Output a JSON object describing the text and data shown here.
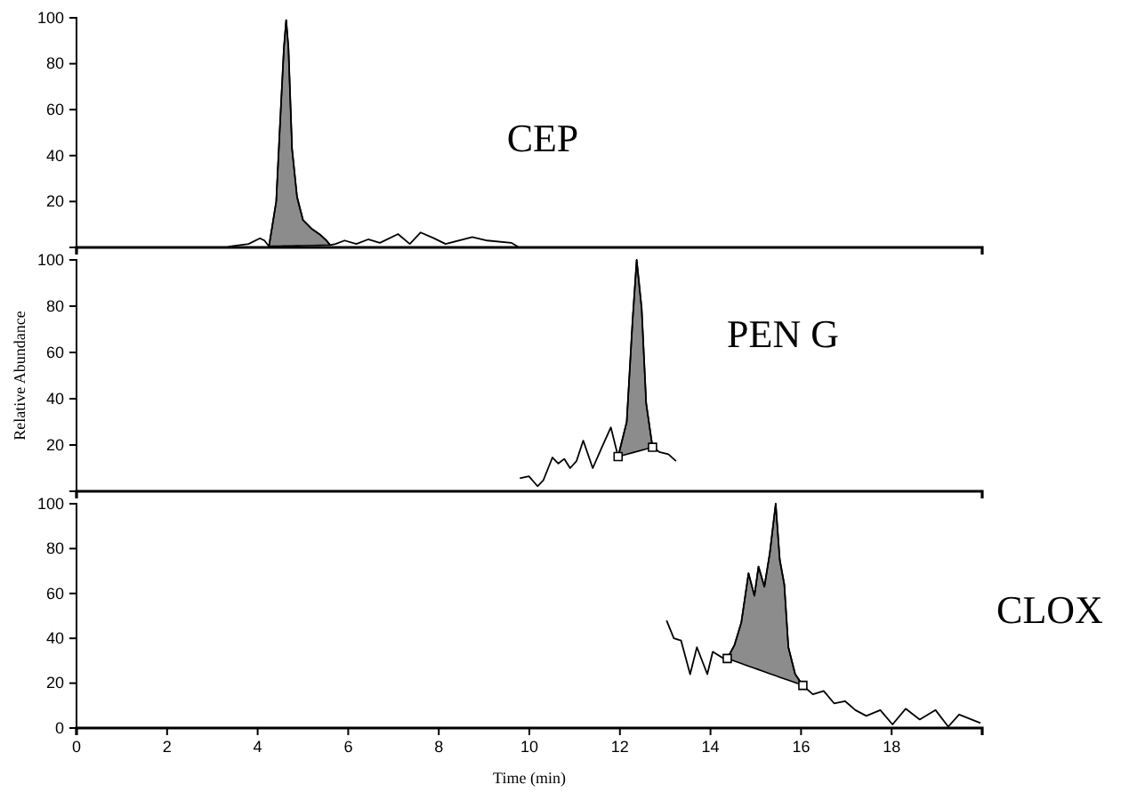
{
  "chart_data": [
    {
      "type": "line",
      "title": "CEP",
      "xlim": [
        0,
        20
      ],
      "ylim": [
        0,
        100
      ],
      "yticks": [
        20,
        40,
        60,
        80,
        100
      ],
      "tick_labels": "y",
      "series": [
        {
          "color": "#000000",
          "x": [
            3.35,
            3.8,
            4.05,
            4.15,
            4.25,
            4.32,
            4.41,
            4.5,
            4.58,
            4.63,
            4.68,
            4.76,
            4.87,
            5.0,
            5.2,
            5.39,
            5.52,
            5.6,
            5.72,
            5.92,
            6.18,
            6.44,
            6.7,
            7.1,
            7.36,
            7.6,
            7.89,
            8.15,
            8.74,
            9.07,
            9.6,
            9.75
          ],
          "values": [
            0.3,
            1.5,
            4,
            3,
            0.5,
            9,
            20,
            56,
            87,
            99,
            87,
            43,
            22,
            12,
            8,
            5.4,
            3,
            1,
            1.5,
            3,
            1.5,
            3.5,
            2,
            5.8,
            1.5,
            6.5,
            4,
            1.5,
            4.5,
            3,
            2,
            0.3
          ]
        },
        {
          "type": "area",
          "color": "#8c8c8c",
          "x": [
            4.25,
            4.32,
            4.41,
            4.5,
            4.58,
            4.63,
            4.68,
            4.76,
            4.87,
            5.0,
            5.2,
            5.39,
            5.52,
            5.6
          ],
          "values": [
            0.5,
            9,
            20,
            56,
            87,
            99,
            87,
            43,
            22,
            12,
            8,
            5.4,
            3,
            1
          ]
        }
      ]
    },
    {
      "type": "line",
      "title": "PEN G",
      "ylabel": "Relative Abundance",
      "xlim": [
        0,
        20
      ],
      "ylim": [
        0,
        100
      ],
      "yticks": [
        20,
        40,
        60,
        80,
        100
      ],
      "tick_labels": "y",
      "series": [
        {
          "color": "#000000",
          "x": [
            9.79,
            9.99,
            10.18,
            10.31,
            10.51,
            10.64,
            10.77,
            10.9,
            11.04,
            11.19,
            11.4,
            11.59,
            11.8,
            11.96,
            12.15,
            12.28,
            12.37,
            12.48,
            12.58,
            12.72,
            12.87,
            13.07,
            13.24
          ],
          "values": [
            5.6,
            6.5,
            2.2,
            4.8,
            14.6,
            12,
            14,
            10,
            13,
            21.9,
            10,
            18.5,
            27.6,
            15,
            30,
            74,
            100,
            79,
            38,
            19,
            17,
            16,
            13
          ]
        },
        {
          "type": "area",
          "color": "#8c8c8c",
          "x": [
            11.96,
            12.15,
            12.28,
            12.37,
            12.48,
            12.58,
            12.72
          ],
          "values": [
            15,
            30,
            74,
            100,
            79,
            38,
            19
          ]
        },
        {
          "type": "scatter",
          "marker": "square",
          "color": "#000000",
          "x": [
            11.96,
            12.72
          ],
          "values": [
            15,
            19
          ]
        }
      ]
    },
    {
      "type": "line",
      "title": "CLOX",
      "xlabel": "Time (min)",
      "xlim": [
        0,
        20
      ],
      "ylim": [
        0,
        100
      ],
      "xticks": [
        0,
        2,
        4,
        6,
        8,
        10,
        12,
        14,
        16,
        18
      ],
      "yticks": [
        0,
        20,
        40,
        60,
        80,
        100
      ],
      "series": [
        {
          "color": "#000000",
          "x": [
            13.03,
            13.19,
            13.35,
            13.55,
            13.7,
            13.93,
            14.05,
            14.29,
            14.37,
            14.53,
            14.68,
            14.84,
            14.97,
            15.06,
            15.19,
            15.31,
            15.44,
            15.53,
            15.63,
            15.72,
            15.87,
            16.04,
            16.26,
            16.5,
            16.73,
            16.97,
            17.2,
            17.44,
            17.75,
            18.02,
            18.31,
            18.62,
            18.97,
            19.25,
            19.49,
            19.96
          ],
          "values": [
            48,
            40,
            39,
            24,
            36,
            24,
            34,
            31,
            31,
            37,
            47,
            69,
            59,
            72,
            63,
            78,
            100,
            75,
            64,
            36,
            24,
            19,
            15,
            16.5,
            11,
            12,
            8,
            5.4,
            8,
            1.6,
            8.6,
            3.8,
            8,
            0.6,
            6,
            2.2
          ]
        },
        {
          "type": "area",
          "color": "#8c8c8c",
          "x": [
            14.37,
            14.53,
            14.68,
            14.84,
            14.97,
            15.06,
            15.19,
            15.31,
            15.44,
            15.53,
            15.63,
            15.72,
            15.87,
            16.04
          ],
          "values": [
            31,
            37,
            47,
            69,
            59,
            72,
            63,
            78,
            100,
            75,
            64,
            36,
            24,
            19
          ]
        },
        {
          "type": "scatter",
          "marker": "square",
          "color": "#000000",
          "x": [
            14.37,
            16.04
          ],
          "values": [
            31,
            19
          ]
        }
      ]
    }
  ]
}
